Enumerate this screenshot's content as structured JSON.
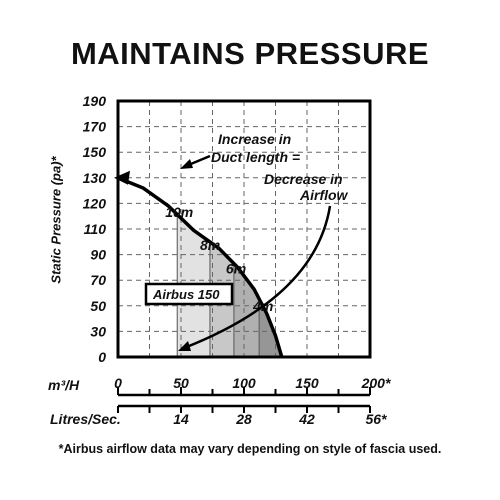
{
  "title": "MAINTAINS PRESSURE",
  "footnote": "*Airbus airflow data may vary depending on style of fascia used.",
  "chart_data": {
    "type": "area",
    "ylabel": "Static Pressure (pa)*",
    "ylim": [
      0,
      190
    ],
    "xlim": [
      0,
      200
    ],
    "yticks": [
      "0",
      "30",
      "50",
      "70",
      "90",
      "110",
      "120",
      "130",
      "150",
      "170",
      "190"
    ],
    "x_axis_1": {
      "label": "m³/H",
      "ticks": [
        "0",
        "50",
        "100",
        "150",
        "200*"
      ]
    },
    "x_axis_2": {
      "label": "Litres/Sec.",
      "ticks": [
        "14",
        "28",
        "42",
        "56*"
      ]
    },
    "grid": true,
    "series": [
      {
        "name": "Airbus 150",
        "points": [
          [
            0,
            130
          ],
          [
            20,
            126
          ],
          [
            40,
            119
          ],
          [
            60,
            109
          ],
          [
            80,
            95
          ],
          [
            95,
            80
          ],
          [
            108,
            63
          ],
          [
            118,
            44
          ],
          [
            125,
            25
          ],
          [
            130,
            0
          ]
        ]
      }
    ],
    "duct_lengths": [
      {
        "label": "10m",
        "x": 47
      },
      {
        "label": "8m",
        "x": 73
      },
      {
        "label": "6m",
        "x": 92
      },
      {
        "label": "4m",
        "x": 112
      }
    ],
    "annotations": [
      {
        "text": [
          "Increase in",
          "Duct length ="
        ]
      },
      {
        "text": [
          "Decrease in",
          "Airflow"
        ]
      }
    ],
    "legend_box": "Airbus 150"
  }
}
